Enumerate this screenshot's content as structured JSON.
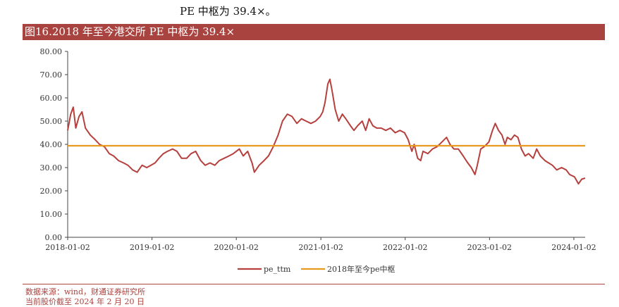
{
  "header": {
    "top_text": "PE 中枢为 39.4×。",
    "figure_title": "图16.2018 年至今港交所 PE 中枢为 39.4×"
  },
  "footnote": {
    "source": "数据来源：wind，财通证券研究所",
    "date": "当前股价截至 2024 年 2 月 20 日"
  },
  "chart_data": {
    "type": "line",
    "title": "",
    "xlabel": "",
    "ylabel": "",
    "ylim": [
      0,
      80
    ],
    "yticks": [
      "0.00",
      "10.00",
      "20.00",
      "30.00",
      "40.00",
      "50.00",
      "60.00",
      "70.00",
      "80.00"
    ],
    "xticks": [
      "2018-01-02",
      "2019-01-02",
      "2020-01-02",
      "2021-01-02",
      "2022-01-02",
      "2023-01-02",
      "2024-01-02"
    ],
    "legend_position": "bottom",
    "series": [
      {
        "name": "pe_ttm",
        "color": "#b5403e",
        "points": [
          [
            "2018-01-02",
            46
          ],
          [
            "2018-01-15",
            53
          ],
          [
            "2018-01-26",
            56
          ],
          [
            "2018-02-06",
            47
          ],
          [
            "2018-02-20",
            52
          ],
          [
            "2018-03-05",
            54
          ],
          [
            "2018-03-20",
            47
          ],
          [
            "2018-04-10",
            44
          ],
          [
            "2018-05-01",
            42
          ],
          [
            "2018-05-20",
            40
          ],
          [
            "2018-06-10",
            39
          ],
          [
            "2018-07-01",
            36
          ],
          [
            "2018-07-20",
            35
          ],
          [
            "2018-08-10",
            33
          ],
          [
            "2018-09-01",
            32
          ],
          [
            "2018-09-20",
            31
          ],
          [
            "2018-10-10",
            29
          ],
          [
            "2018-10-30",
            28
          ],
          [
            "2018-11-20",
            31
          ],
          [
            "2018-12-10",
            30
          ],
          [
            "2018-12-28",
            31
          ],
          [
            "2019-01-15",
            32
          ],
          [
            "2019-02-01",
            34
          ],
          [
            "2019-02-20",
            36
          ],
          [
            "2019-03-10",
            37
          ],
          [
            "2019-04-01",
            38
          ],
          [
            "2019-04-20",
            37
          ],
          [
            "2019-05-10",
            34
          ],
          [
            "2019-06-01",
            34
          ],
          [
            "2019-06-20",
            36
          ],
          [
            "2019-07-10",
            37
          ],
          [
            "2019-08-01",
            33
          ],
          [
            "2019-08-20",
            31
          ],
          [
            "2019-09-10",
            32
          ],
          [
            "2019-10-01",
            31
          ],
          [
            "2019-10-20",
            33
          ],
          [
            "2019-11-10",
            34
          ],
          [
            "2019-12-01",
            35
          ],
          [
            "2019-12-20",
            36
          ],
          [
            "2020-01-15",
            38
          ],
          [
            "2020-02-01",
            35
          ],
          [
            "2020-02-20",
            37
          ],
          [
            "2020-03-10",
            32
          ],
          [
            "2020-03-20",
            28
          ],
          [
            "2020-04-10",
            31
          ],
          [
            "2020-05-01",
            33
          ],
          [
            "2020-05-20",
            35
          ],
          [
            "2020-06-10",
            39
          ],
          [
            "2020-07-01",
            44
          ],
          [
            "2020-07-20",
            50
          ],
          [
            "2020-08-10",
            53
          ],
          [
            "2020-08-30",
            52
          ],
          [
            "2020-09-20",
            49
          ],
          [
            "2020-10-10",
            51
          ],
          [
            "2020-10-30",
            50
          ],
          [
            "2020-11-20",
            49
          ],
          [
            "2020-12-10",
            50
          ],
          [
            "2020-12-30",
            52
          ],
          [
            "2021-01-10",
            54
          ],
          [
            "2021-01-20",
            58
          ],
          [
            "2021-02-01",
            66
          ],
          [
            "2021-02-10",
            68
          ],
          [
            "2021-02-18",
            64
          ],
          [
            "2021-03-05",
            55
          ],
          [
            "2021-03-20",
            50
          ],
          [
            "2021-04-05",
            53
          ],
          [
            "2021-04-20",
            51
          ],
          [
            "2021-05-10",
            48
          ],
          [
            "2021-05-25",
            46
          ],
          [
            "2021-06-10",
            48
          ],
          [
            "2021-06-30",
            50
          ],
          [
            "2021-07-15",
            46
          ],
          [
            "2021-07-30",
            51
          ],
          [
            "2021-08-15",
            48
          ],
          [
            "2021-09-01",
            47
          ],
          [
            "2021-09-20",
            47
          ],
          [
            "2021-10-10",
            46
          ],
          [
            "2021-10-30",
            47
          ],
          [
            "2021-11-20",
            45
          ],
          [
            "2021-12-10",
            46
          ],
          [
            "2021-12-30",
            45
          ],
          [
            "2022-01-15",
            42
          ],
          [
            "2022-01-31",
            37
          ],
          [
            "2022-02-10",
            40
          ],
          [
            "2022-02-25",
            34
          ],
          [
            "2022-03-10",
            33
          ],
          [
            "2022-03-20",
            37
          ],
          [
            "2022-04-10",
            36
          ],
          [
            "2022-04-30",
            38
          ],
          [
            "2022-05-20",
            39
          ],
          [
            "2022-06-10",
            41
          ],
          [
            "2022-06-30",
            43
          ],
          [
            "2022-07-15",
            40
          ],
          [
            "2022-08-01",
            38
          ],
          [
            "2022-08-20",
            38
          ],
          [
            "2022-09-10",
            35
          ],
          [
            "2022-09-30",
            32
          ],
          [
            "2022-10-15",
            30
          ],
          [
            "2022-10-31",
            27
          ],
          [
            "2022-11-10",
            31
          ],
          [
            "2022-11-25",
            38
          ],
          [
            "2022-12-10",
            39
          ],
          [
            "2022-12-30",
            41
          ],
          [
            "2023-01-15",
            46
          ],
          [
            "2023-01-27",
            49
          ],
          [
            "2023-02-10",
            46
          ],
          [
            "2023-02-25",
            44
          ],
          [
            "2023-03-10",
            40
          ],
          [
            "2023-03-20",
            43
          ],
          [
            "2023-04-05",
            42
          ],
          [
            "2023-04-20",
            44
          ],
          [
            "2023-05-05",
            43
          ],
          [
            "2023-05-20",
            38
          ],
          [
            "2023-06-05",
            35
          ],
          [
            "2023-06-20",
            36
          ],
          [
            "2023-07-10",
            34
          ],
          [
            "2023-07-25",
            38
          ],
          [
            "2023-08-10",
            35
          ],
          [
            "2023-08-30",
            33
          ],
          [
            "2023-09-15",
            32
          ],
          [
            "2023-10-01",
            31
          ],
          [
            "2023-10-20",
            29
          ],
          [
            "2023-11-10",
            30
          ],
          [
            "2023-11-30",
            29
          ],
          [
            "2023-12-15",
            27
          ],
          [
            "2024-01-05",
            26
          ],
          [
            "2024-01-22",
            23
          ],
          [
            "2024-02-05",
            25
          ],
          [
            "2024-02-20",
            25.5
          ]
        ]
      },
      {
        "name": "2018年至今pe中枢",
        "color": "#e89a1e",
        "points": [
          [
            "2018-01-02",
            39.4
          ],
          [
            "2024-02-20",
            39.4
          ]
        ]
      }
    ]
  }
}
